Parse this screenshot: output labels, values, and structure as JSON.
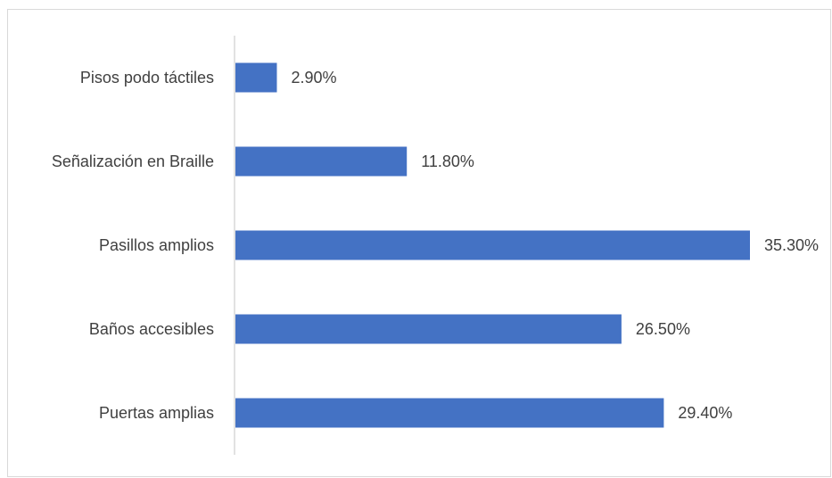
{
  "chart_data": {
    "type": "bar",
    "orientation": "horizontal",
    "categories": [
      "Pisos podo táctiles",
      "Señalización en Braille",
      "Pasillos amplios",
      "Baños accesibles",
      "Puertas amplias"
    ],
    "values": [
      2.9,
      11.8,
      35.3,
      26.5,
      29.4
    ],
    "value_labels": [
      "2.90%",
      "11.80%",
      "35.30%",
      "26.50%",
      "29.40%"
    ],
    "xlim": [
      0,
      35.3
    ],
    "grid": false,
    "legend": "none",
    "bar_color": "#4472C4",
    "axis_color": "#d9d9d9",
    "text_color": "#404040"
  }
}
